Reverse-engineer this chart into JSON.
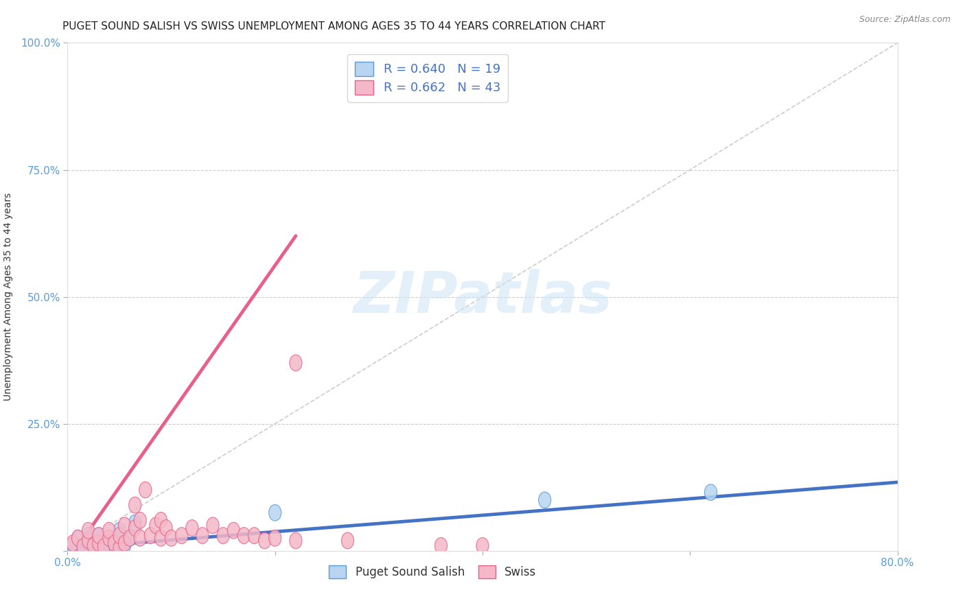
{
  "title": "PUGET SOUND SALISH VS SWISS UNEMPLOYMENT AMONG AGES 35 TO 44 YEARS CORRELATION CHART",
  "source": "Source: ZipAtlas.com",
  "ylabel": "Unemployment Among Ages 35 to 44 years",
  "xlim": [
    0.0,
    0.8
  ],
  "ylim": [
    0.0,
    1.0
  ],
  "xticks": [
    0.0,
    0.2,
    0.4,
    0.6,
    0.8
  ],
  "xticklabels": [
    "0.0%",
    "",
    "",
    "",
    "80.0%"
  ],
  "yticks": [
    0.0,
    0.25,
    0.5,
    0.75,
    1.0
  ],
  "yticklabels": [
    "",
    "25.0%",
    "50.0%",
    "75.0%",
    "100.0%"
  ],
  "background_color": "#ffffff",
  "grid_color": "#cccccc",
  "watermark": "ZIPatlas",
  "series": [
    {
      "name": "Puget Sound Salish",
      "color": "#b8d4f0",
      "edge_color": "#5b9bd5",
      "R": 0.64,
      "N": 19,
      "scatter_x": [
        0.005,
        0.01,
        0.015,
        0.02,
        0.02,
        0.03,
        0.03,
        0.035,
        0.04,
        0.04,
        0.045,
        0.05,
        0.05,
        0.055,
        0.06,
        0.065,
        0.2,
        0.46,
        0.62
      ],
      "scatter_y": [
        0.01,
        0.025,
        0.005,
        0.015,
        0.03,
        0.01,
        0.03,
        0.005,
        0.015,
        0.025,
        0.008,
        0.02,
        0.04,
        0.01,
        0.025,
        0.055,
        0.075,
        0.1,
        0.115
      ],
      "trend_x": [
        0.0,
        0.8
      ],
      "trend_y": [
        0.005,
        0.135
      ],
      "trend_color": "#4472c4",
      "trend_lw": 3.5
    },
    {
      "name": "Swiss",
      "color": "#f4b8c8",
      "edge_color": "#e8608a",
      "R": 0.662,
      "N": 43,
      "scatter_x": [
        0.005,
        0.01,
        0.015,
        0.02,
        0.025,
        0.02,
        0.03,
        0.03,
        0.035,
        0.04,
        0.04,
        0.045,
        0.05,
        0.05,
        0.055,
        0.055,
        0.06,
        0.065,
        0.065,
        0.07,
        0.07,
        0.075,
        0.08,
        0.085,
        0.09,
        0.09,
        0.095,
        0.1,
        0.11,
        0.12,
        0.13,
        0.14,
        0.15,
        0.16,
        0.17,
        0.18,
        0.19,
        0.2,
        0.22,
        0.22,
        0.27,
        0.36,
        0.4
      ],
      "scatter_y": [
        0.015,
        0.025,
        0.008,
        0.02,
        0.01,
        0.04,
        0.015,
        0.03,
        0.008,
        0.025,
        0.04,
        0.015,
        0.005,
        0.03,
        0.015,
        0.05,
        0.025,
        0.045,
        0.09,
        0.025,
        0.06,
        0.12,
        0.03,
        0.05,
        0.06,
        0.025,
        0.045,
        0.025,
        0.03,
        0.045,
        0.03,
        0.05,
        0.03,
        0.04,
        0.03,
        0.03,
        0.02,
        0.025,
        0.02,
        0.37,
        0.02,
        0.01,
        0.01
      ],
      "trend_x": [
        0.0,
        0.22
      ],
      "trend_y": [
        -0.02,
        0.62
      ],
      "trend_color": "#e8608a",
      "trend_lw": 3.5
    }
  ],
  "legend_R_color": "#4472c4",
  "title_fontsize": 11,
  "axis_tick_color": "#5b9bd5",
  "axis_tick_fontsize": 11
}
